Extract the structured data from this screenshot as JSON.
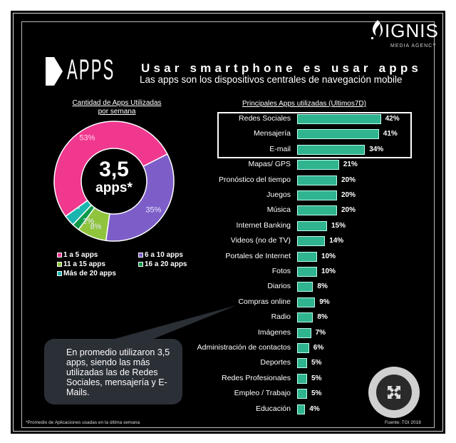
{
  "header": {
    "brand": "IGNIS",
    "brand_sub": "MEDIA AGENCY",
    "section_logo": "APPS",
    "title": "Usar smartphone es usar apps",
    "subtitle": "Las apps son los dispositivos centrales de navegación mobile"
  },
  "donut": {
    "title_line1": "Cantidad de Apps Utilizadas",
    "title_line2": "por semana",
    "center_value": "3,5",
    "center_unit": "apps*"
  },
  "bars": {
    "title": "Principales Apps utilizadas (Ultimos7D)"
  },
  "chart_data": [
    {
      "type": "pie",
      "title": "Cantidad de Apps Utilizadas por semana",
      "categories": [
        "1 a 5 apps",
        "6 a 10 apps",
        "11 a 15 apps",
        "16 a 20 apps",
        "Más de 20 apps"
      ],
      "values": [
        53,
        35,
        8,
        2,
        3
      ],
      "labels": [
        "53%",
        "35%",
        "8%",
        "2%",
        "3%"
      ],
      "colors": [
        "#f0388f",
        "#7d5ec8",
        "#8fc43c",
        "#0f9a4a",
        "#1bb5b0"
      ],
      "legend": "bottom"
    },
    {
      "type": "bar",
      "orientation": "horizontal",
      "title": "Principales Apps utilizadas (Ultimos7D)",
      "categories": [
        "Redes Sociales",
        "Mensajería",
        "E-mail",
        "Mapas/ GPS",
        "Pronóstico del tiempo",
        "Juegos",
        "Música",
        "Internet Banking",
        "Videos (no de TV)",
        "Portales de Internet",
        "Fotos",
        "Diarios",
        "Compras online",
        "Radio",
        "Imágenes",
        "Administración de contactos",
        "Deportes",
        "Redes Profesionales",
        "Empleo / Trabajo",
        "Educación"
      ],
      "values": [
        42,
        41,
        34,
        21,
        20,
        20,
        20,
        15,
        14,
        10,
        10,
        8,
        9,
        8,
        7,
        6,
        5,
        5,
        5,
        4
      ],
      "labels": [
        "42%",
        "41%",
        "34%",
        "21%",
        "20%",
        "20%",
        "20%",
        "15%",
        "14%",
        "10%",
        "10%",
        "8%",
        "9%",
        "8%",
        "7%",
        "6%",
        "5%",
        "5%",
        "5%",
        "4%"
      ],
      "color": "#2fb48f",
      "highlighted": [
        "Redes Sociales",
        "Mensajería",
        "E-mail"
      ]
    }
  ],
  "callout": "En promedio utilizaron 3,5 apps, siendo las más utilizadas las de Redes Sociales, mensajería y E-Mails.",
  "footnote": "*Promedio de Aplicaciones usadas en la última semana",
  "source": "Fuente: TGI 2018",
  "expand_icon": "expand-arrows-icon"
}
